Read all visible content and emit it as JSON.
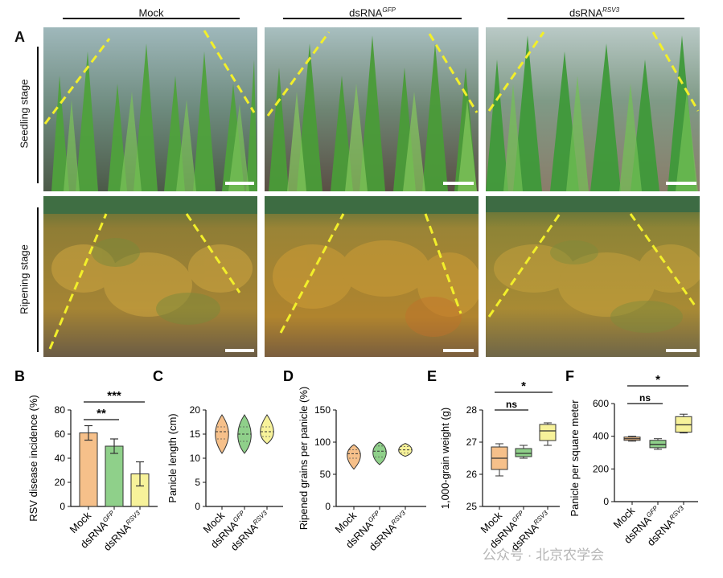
{
  "figure": {
    "panel_a": {
      "letter": "A",
      "columns": [
        {
          "base": "Mock",
          "sup": ""
        },
        {
          "base": "dsRNA",
          "sup": "GFP"
        },
        {
          "base": "dsRNA",
          "sup": "RSV3"
        }
      ],
      "rows": [
        "Seedling stage",
        "Ripening stage"
      ]
    },
    "colors": {
      "mock": "#f6c08a",
      "gfp": "#8fd08a",
      "rsv3": "#f7f29a",
      "dash": "#f2ef2a",
      "seedling_green": "#4e9b3a",
      "water": "#8fa6a8",
      "ripening_gold": "#b38a2e"
    }
  },
  "chart_data": [
    {
      "panel": "B",
      "type": "bar",
      "ylabel": "RSV disease incidence (%)",
      "ylim": [
        0,
        80
      ],
      "yticks": [
        "0",
        "20",
        "40",
        "60",
        "80"
      ],
      "categories": [
        {
          "base": "Mock",
          "sup": ""
        },
        {
          "base": "dsRNA",
          "sup": "GFP"
        },
        {
          "base": "dsRNA",
          "sup": "RSV3"
        }
      ],
      "values": [
        61,
        50,
        27
      ],
      "errors": [
        6,
        6,
        10
      ],
      "significance": [
        {
          "from": 0,
          "to": 1,
          "label": "**"
        },
        {
          "from": 0,
          "to": 2,
          "label": "***"
        }
      ]
    },
    {
      "panel": "C",
      "type": "violin",
      "ylabel": "Panicle length (cm)",
      "ylim": [
        0,
        20
      ],
      "yticks": [
        "0",
        "5",
        "10",
        "15",
        "20"
      ],
      "categories": [
        {
          "base": "Mock",
          "sup": ""
        },
        {
          "base": "dsRNA",
          "sup": "GFP"
        },
        {
          "base": "dsRNA",
          "sup": "RSV3"
        }
      ],
      "medians": [
        15.5,
        15,
        15.5
      ],
      "quartiles": [
        [
          14,
          16.5
        ],
        [
          13.5,
          16.5
        ],
        [
          14.5,
          16.5
        ]
      ],
      "ranges": [
        [
          11,
          19
        ],
        [
          11,
          19
        ],
        [
          13,
          19
        ]
      ]
    },
    {
      "panel": "D",
      "type": "violin",
      "ylabel": "Ripened grains per panicle (%)",
      "ylim": [
        0,
        150
      ],
      "yticks": [
        "0",
        "50",
        "100",
        "150"
      ],
      "categories": [
        {
          "base": "Mock",
          "sup": ""
        },
        {
          "base": "dsRNA",
          "sup": "GFP"
        },
        {
          "base": "dsRNA",
          "sup": "RSV3"
        }
      ],
      "medians": [
        82,
        86,
        88
      ],
      "quartiles": [
        [
          75,
          88
        ],
        [
          77,
          94
        ],
        [
          83,
          93
        ]
      ],
      "ranges": [
        [
          58,
          96
        ],
        [
          65,
          100
        ],
        [
          78,
          98
        ]
      ]
    },
    {
      "panel": "E",
      "type": "box",
      "ylabel": "1,000-grain weight (g)",
      "ylim": [
        25,
        28
      ],
      "yticks": [
        "25",
        "26",
        "27",
        "28"
      ],
      "categories": [
        {
          "base": "Mock",
          "sup": ""
        },
        {
          "base": "dsRNA",
          "sup": "GFP"
        },
        {
          "base": "dsRNA",
          "sup": "RSV3"
        }
      ],
      "boxes": [
        {
          "min": 25.95,
          "q1": 26.15,
          "median": 26.5,
          "q3": 26.85,
          "max": 26.95
        },
        {
          "min": 26.5,
          "q1": 26.55,
          "median": 26.65,
          "q3": 26.8,
          "max": 26.9
        },
        {
          "min": 26.9,
          "q1": 27.05,
          "median": 27.35,
          "q3": 27.55,
          "max": 27.6
        }
      ],
      "significance": [
        {
          "from": 0,
          "to": 1,
          "label": "ns"
        },
        {
          "from": 0,
          "to": 2,
          "label": "*"
        }
      ]
    },
    {
      "panel": "F",
      "type": "box",
      "ylabel": "Panicle per square meter",
      "ylim": [
        0,
        600
      ],
      "yticks": [
        "0",
        "200",
        "400",
        "600"
      ],
      "categories": [
        {
          "base": "Mock",
          "sup": ""
        },
        {
          "base": "dsRNA",
          "sup": "GFP"
        },
        {
          "base": "dsRNA",
          "sup": "RSV3"
        }
      ],
      "boxes": [
        {
          "min": 370,
          "q1": 375,
          "median": 385,
          "q3": 395,
          "max": 400
        },
        {
          "min": 320,
          "q1": 330,
          "median": 350,
          "q3": 375,
          "max": 385
        },
        {
          "min": 420,
          "q1": 425,
          "median": 470,
          "q3": 520,
          "max": 535
        }
      ],
      "significance": [
        {
          "from": 0,
          "to": 1,
          "label": "ns"
        },
        {
          "from": 0,
          "to": 2,
          "label": "*"
        }
      ]
    }
  ],
  "watermark": "公众号 · 北京农学会"
}
